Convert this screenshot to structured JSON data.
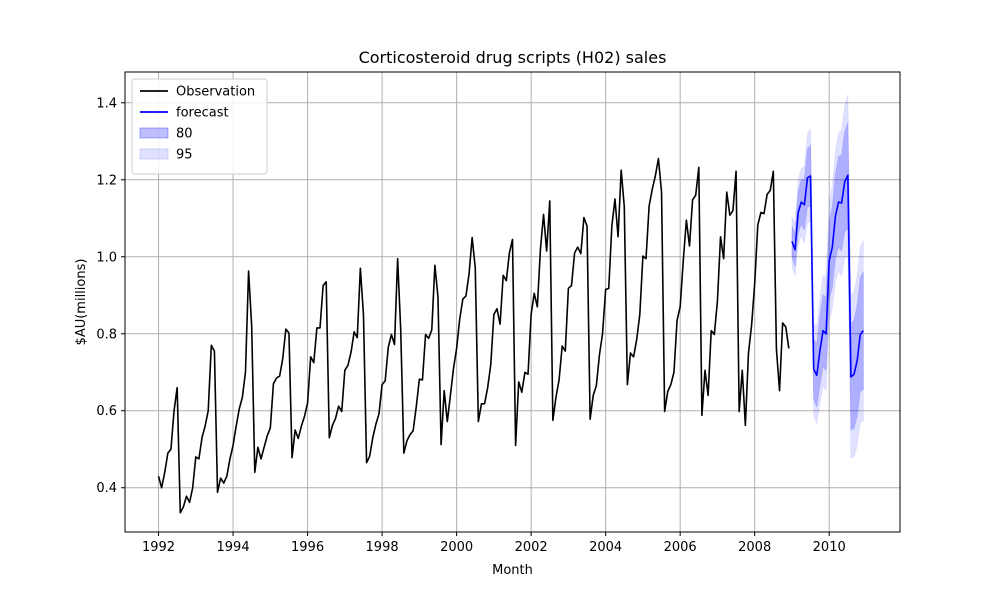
{
  "chart_data": {
    "type": "line",
    "title": "Corticosteroid drug scripts (H02) sales",
    "xlabel": "Month",
    "ylabel": "$AU(millions)",
    "xlim": [
      1991.1,
      2011.9
    ],
    "ylim": [
      0.285,
      1.48
    ],
    "x_ticks": [
      1992,
      1994,
      1996,
      1998,
      2000,
      2002,
      2004,
      2006,
      2008,
      2010
    ],
    "y_ticks": [
      0.4,
      0.6,
      0.8,
      1.0,
      1.2,
      1.4
    ],
    "y_tick_labels": [
      "0.4",
      "0.6",
      "0.8",
      "1.0",
      "1.2",
      "1.4"
    ],
    "grid": true,
    "legend_position": "top-left",
    "legend": [
      {
        "label": "Observation",
        "kind": "line",
        "color": "#000000"
      },
      {
        "label": "forecast",
        "kind": "line",
        "color": "#0000ff"
      },
      {
        "label": "80",
        "kind": "patch",
        "color": "#0000ff",
        "opacity": 0.25
      },
      {
        "label": "95",
        "kind": "patch",
        "color": "#0000ff",
        "opacity": 0.12
      }
    ],
    "observation": {
      "name": "Observation",
      "color": "#000000",
      "start": [
        1992,
        1
      ],
      "values": [
        0.43,
        0.4,
        0.44,
        0.49,
        0.5,
        0.6,
        0.66,
        0.335,
        0.35,
        0.378,
        0.362,
        0.4,
        0.48,
        0.475,
        0.53,
        0.56,
        0.6,
        0.77,
        0.755,
        0.388,
        0.425,
        0.412,
        0.43,
        0.475,
        0.51,
        0.56,
        0.605,
        0.635,
        0.7,
        0.963,
        0.82,
        0.44,
        0.505,
        0.475,
        0.505,
        0.535,
        0.555,
        0.67,
        0.685,
        0.69,
        0.735,
        0.812,
        0.802,
        0.478,
        0.55,
        0.528,
        0.56,
        0.585,
        0.62,
        0.74,
        0.725,
        0.815,
        0.815,
        0.925,
        0.935,
        0.53,
        0.562,
        0.58,
        0.612,
        0.598,
        0.705,
        0.718,
        0.752,
        0.805,
        0.79,
        0.97,
        0.85,
        0.465,
        0.482,
        0.53,
        0.565,
        0.592,
        0.668,
        0.678,
        0.765,
        0.798,
        0.772,
        0.995,
        0.81,
        0.49,
        0.522,
        0.538,
        0.548,
        0.61,
        0.682,
        0.68,
        0.798,
        0.788,
        0.81,
        0.978,
        0.895,
        0.512,
        0.652,
        0.572,
        0.64,
        0.71,
        0.762,
        0.838,
        0.89,
        0.898,
        0.955,
        1.05,
        0.972,
        0.572,
        0.618,
        0.618,
        0.66,
        0.72,
        0.85,
        0.865,
        0.825,
        0.952,
        0.938,
        1.01,
        1.045,
        0.51,
        0.675,
        0.648,
        0.7,
        0.695,
        0.85,
        0.905,
        0.87,
        1.02,
        1.11,
        1.015,
        1.145,
        0.575,
        0.635,
        0.68,
        0.768,
        0.755,
        0.918,
        0.925,
        1.01,
        1.025,
        1.008,
        1.102,
        1.08,
        0.578,
        0.64,
        0.665,
        0.745,
        0.8,
        0.915,
        0.918,
        1.08,
        1.15,
        1.052,
        1.225,
        1.13,
        0.668,
        0.75,
        0.74,
        0.785,
        0.85,
        1.002,
        0.995,
        1.132,
        1.175,
        1.21,
        1.255,
        1.168,
        0.598,
        0.65,
        0.668,
        0.7,
        0.835,
        0.87,
        0.99,
        1.095,
        1.028,
        1.148,
        1.16,
        1.232,
        0.588,
        0.705,
        0.64,
        0.808,
        0.798,
        0.885,
        1.052,
        0.995,
        1.168,
        1.108,
        1.12,
        1.222,
        0.598,
        0.705,
        0.562,
        0.75,
        0.822,
        0.93,
        1.082,
        1.115,
        1.112,
        1.162,
        1.172,
        1.222,
        0.76,
        0.652,
        0.828,
        0.818,
        0.762
      ]
    },
    "forecast": {
      "name": "forecast",
      "color": "#0000ff",
      "start": [
        2009,
        1
      ],
      "values": [
        1.04,
        1.018,
        1.115,
        1.142,
        1.135,
        1.205,
        1.21,
        0.708,
        0.692,
        0.755,
        0.808,
        0.8,
        0.99,
        1.025,
        1.105,
        1.142,
        1.14,
        1.195,
        1.212,
        0.688,
        0.695,
        0.73,
        0.798,
        0.808
      ],
      "lower80": [
        1.0,
        0.975,
        1.06,
        1.085,
        1.07,
        1.13,
        1.13,
        0.63,
        0.61,
        0.665,
        0.715,
        0.705,
        0.89,
        0.92,
        0.995,
        1.025,
        1.015,
        1.065,
        1.075,
        0.55,
        0.555,
        0.585,
        0.65,
        0.655
      ],
      "upper80": [
        1.08,
        1.06,
        1.17,
        1.2,
        1.2,
        1.28,
        1.29,
        0.786,
        0.774,
        0.845,
        0.901,
        0.895,
        1.09,
        1.13,
        1.215,
        1.259,
        1.265,
        1.325,
        1.349,
        0.826,
        0.835,
        0.875,
        0.946,
        0.961
      ],
      "lower95": [
        0.975,
        0.95,
        1.03,
        1.055,
        1.035,
        1.09,
        1.088,
        0.588,
        0.566,
        0.618,
        0.665,
        0.652,
        0.835,
        0.864,
        0.936,
        0.963,
        0.95,
        0.997,
        1.002,
        0.478,
        0.48,
        0.508,
        0.57,
        0.573
      ],
      "upper95": [
        1.105,
        1.086,
        1.2,
        1.229,
        1.235,
        1.32,
        1.332,
        0.828,
        0.818,
        0.892,
        0.951,
        0.948,
        1.145,
        1.186,
        1.274,
        1.321,
        1.33,
        1.393,
        1.422,
        0.898,
        0.91,
        0.952,
        1.026,
        1.043
      ]
    }
  }
}
